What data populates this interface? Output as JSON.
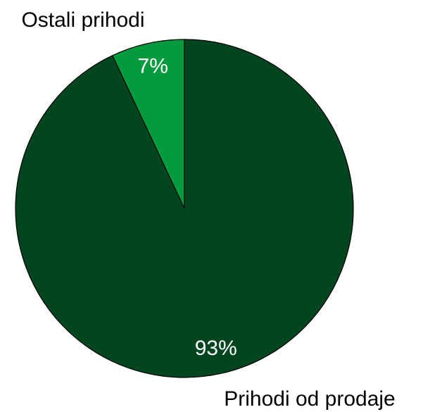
{
  "chart_data": {
    "type": "pie",
    "categories": [
      "Prihodi od prodaje",
      "Ostali prihodi"
    ],
    "values": [
      93,
      7
    ],
    "value_labels": [
      "93%",
      "7%"
    ],
    "colors": [
      "#03451f",
      "#069a3e"
    ]
  }
}
